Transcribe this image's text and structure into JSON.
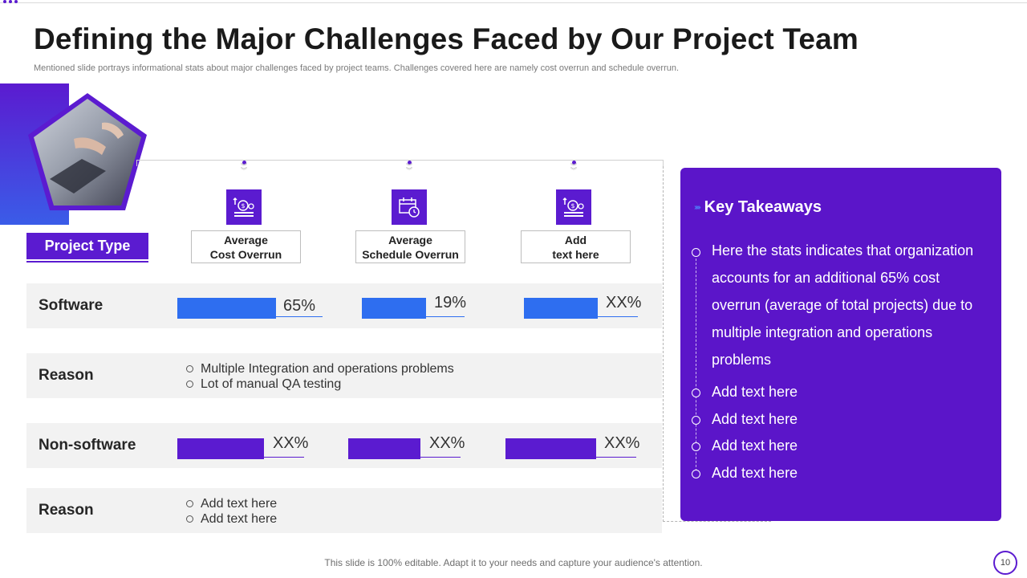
{
  "slide": {
    "title": "Defining the Major Challenges Faced by Our Project Team",
    "subtitle": "Mentioned slide portrays informational stats about major challenges faced by project teams. Challenges covered here are namely cost overrun and schedule overrun.",
    "footer": "This slide is 100% editable. Adapt it to your needs and capture your audience's attention.",
    "page_number": "10"
  },
  "colors": {
    "primary": "#5b1bd0",
    "blue": "#2e6ef0",
    "panel": "#5b15c9",
    "row_bg": "#f2f2f2"
  },
  "columns": [
    {
      "label_line1": "Average",
      "label_line2": "Cost Overrun",
      "icon": "money-bag-icon"
    },
    {
      "label_line1": "Average",
      "label_line2": "Schedule Overrun",
      "icon": "calendar-clock-icon"
    },
    {
      "label_line1": "Add",
      "label_line2": "text here",
      "icon": "money-bag-icon"
    }
  ],
  "project_type_label": "Project Type",
  "rows": {
    "software": {
      "label": "Software",
      "values": [
        "65%",
        "19%",
        "XX%"
      ]
    },
    "reason1": {
      "label": "Reason",
      "bullets": [
        "Multiple Integration  and operations problems",
        "Lot of manual  QA testing"
      ]
    },
    "nonsoftware": {
      "label": "Non-software",
      "values": [
        "XX%",
        "XX%",
        "XX%"
      ]
    },
    "reason2": {
      "label": "Reason",
      "bullets": [
        "Add text here",
        "Add text here"
      ]
    }
  },
  "takeaways": {
    "title": "Key Takeaways",
    "main_lines": [
      "Here the stats indicates that organization",
      "accounts for an additional 65% cost",
      "overrun (average of total projects) due to",
      "multiple integration and operations",
      "problems"
    ],
    "items": [
      "Add text here",
      "Add text here",
      "Add text here",
      "Add text here"
    ]
  }
}
